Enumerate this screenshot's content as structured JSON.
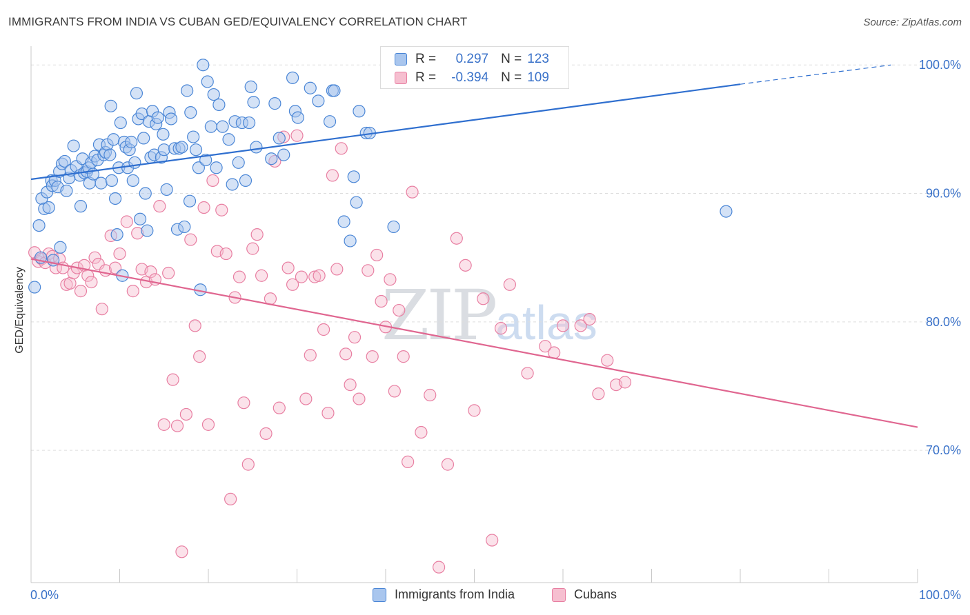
{
  "title": "IMMIGRANTS FROM INDIA VS CUBAN GED/EQUIVALENCY CORRELATION CHART",
  "source": "Source: ZipAtlas.com",
  "watermark": {
    "zip": "ZIP",
    "atlas": "atlas"
  },
  "colors": {
    "blue_fill": "#a9c6ee",
    "blue_stroke": "#4a86d6",
    "blue_line": "#2f6fcf",
    "pink_fill": "#f6bfd0",
    "pink_stroke": "#e87fa2",
    "pink_line": "#e06690",
    "value_text": "#3a72c9",
    "grid": "#dddddd"
  },
  "legend": {
    "rows": [
      {
        "r_label": "R =",
        "r_value": "0.297",
        "n_label": "N =",
        "n_value": "123",
        "series": "blue"
      },
      {
        "r_label": "R =",
        "r_value": "-0.394",
        "n_label": "N =",
        "n_value": "109",
        "series": "pink"
      }
    ]
  },
  "bottom_legend": [
    "Immigrants from India",
    "Cubans"
  ],
  "chart_data": {
    "type": "scatter",
    "xlabel": "",
    "ylabel": "GED/Equivalency",
    "x_tick_labels": [
      "0.0%",
      "100.0%"
    ],
    "y_tick_labels": [
      "100.0%",
      "90.0%",
      "80.0%",
      "70.0%"
    ],
    "xlim": [
      0,
      100
    ],
    "ylim": [
      59.7,
      101.3
    ],
    "grid": true,
    "legend_position": "top-center",
    "series": [
      {
        "name": "Immigrants from India",
        "color": "#4a86d6",
        "trend": {
          "x": [
            0,
            80
          ],
          "y": [
            91.1,
            98.5
          ],
          "dashed_to_x": 97,
          "dashed_to_y": 100.0
        },
        "points": [
          [
            0.4,
            82.7
          ],
          [
            0.9,
            87.5
          ],
          [
            1.1,
            85.0
          ],
          [
            1.2,
            89.6
          ],
          [
            1.5,
            88.8
          ],
          [
            1.8,
            90.1
          ],
          [
            2.0,
            88.9
          ],
          [
            2.3,
            91.0
          ],
          [
            2.4,
            90.6
          ],
          [
            2.7,
            91.0
          ],
          [
            3.0,
            90.5
          ],
          [
            3.2,
            91.7
          ],
          [
            3.5,
            92.3
          ],
          [
            3.8,
            92.5
          ],
          [
            4.0,
            90.2
          ],
          [
            4.3,
            91.2
          ],
          [
            4.5,
            91.8
          ],
          [
            4.8,
            93.7
          ],
          [
            5.1,
            92.1
          ],
          [
            5.5,
            91.4
          ],
          [
            5.8,
            92.7
          ],
          [
            6.0,
            91.6
          ],
          [
            6.3,
            91.7
          ],
          [
            6.5,
            92.0
          ],
          [
            6.6,
            90.8
          ],
          [
            6.8,
            92.4
          ],
          [
            7.0,
            91.5
          ],
          [
            7.2,
            92.9
          ],
          [
            7.5,
            92.6
          ],
          [
            7.7,
            93.8
          ],
          [
            7.9,
            90.8
          ],
          [
            8.2,
            93.0
          ],
          [
            8.4,
            93.2
          ],
          [
            8.6,
            93.8
          ],
          [
            8.9,
            93.0
          ],
          [
            9.1,
            91.0
          ],
          [
            9.3,
            94.2
          ],
          [
            9.5,
            89.6
          ],
          [
            9.7,
            86.8
          ],
          [
            9.9,
            92.0
          ],
          [
            10.1,
            95.5
          ],
          [
            10.3,
            83.6
          ],
          [
            10.5,
            94.0
          ],
          [
            10.7,
            93.6
          ],
          [
            10.9,
            92.0
          ],
          [
            11.1,
            93.4
          ],
          [
            11.3,
            94.0
          ],
          [
            11.5,
            91.0
          ],
          [
            11.7,
            92.4
          ],
          [
            11.9,
            97.8
          ],
          [
            12.1,
            95.8
          ],
          [
            12.3,
            88.0
          ],
          [
            12.5,
            96.2
          ],
          [
            12.7,
            94.3
          ],
          [
            12.9,
            90.0
          ],
          [
            13.1,
            87.1
          ],
          [
            13.3,
            95.6
          ],
          [
            13.5,
            92.8
          ],
          [
            13.7,
            96.4
          ],
          [
            13.9,
            93.0
          ],
          [
            14.1,
            95.4
          ],
          [
            14.3,
            95.9
          ],
          [
            14.7,
            92.8
          ],
          [
            15.0,
            93.4
          ],
          [
            15.3,
            90.3
          ],
          [
            15.6,
            96.3
          ],
          [
            15.8,
            95.8
          ],
          [
            16.2,
            93.5
          ],
          [
            16.5,
            87.2
          ],
          [
            16.7,
            93.5
          ],
          [
            17.0,
            93.6
          ],
          [
            17.3,
            87.4
          ],
          [
            17.6,
            98.0
          ],
          [
            17.9,
            89.4
          ],
          [
            18.0,
            96.3
          ],
          [
            18.3,
            94.4
          ],
          [
            18.6,
            93.4
          ],
          [
            18.9,
            92.0
          ],
          [
            19.1,
            82.5
          ],
          [
            19.4,
            100.0
          ],
          [
            19.7,
            92.6
          ],
          [
            19.9,
            98.7
          ],
          [
            20.3,
            95.2
          ],
          [
            20.6,
            97.7
          ],
          [
            20.9,
            92.0
          ],
          [
            21.2,
            96.9
          ],
          [
            21.6,
            95.2
          ],
          [
            22.3,
            94.2
          ],
          [
            22.7,
            90.7
          ],
          [
            23.0,
            95.6
          ],
          [
            23.4,
            92.4
          ],
          [
            23.8,
            95.5
          ],
          [
            24.2,
            91.0
          ],
          [
            24.6,
            95.5
          ],
          [
            24.8,
            98.3
          ],
          [
            25.1,
            97.1
          ],
          [
            25.4,
            93.6
          ],
          [
            27.1,
            92.7
          ],
          [
            27.5,
            97.0
          ],
          [
            28.0,
            94.3
          ],
          [
            28.5,
            93.0
          ],
          [
            29.5,
            99.0
          ],
          [
            29.8,
            96.4
          ],
          [
            30.1,
            95.9
          ],
          [
            31.5,
            98.2
          ],
          [
            32.4,
            97.2
          ],
          [
            33.7,
            95.6
          ],
          [
            34.0,
            98.0
          ],
          [
            34.2,
            98.0
          ],
          [
            35.3,
            87.8
          ],
          [
            36.0,
            86.3
          ],
          [
            36.4,
            91.3
          ],
          [
            36.7,
            89.3
          ],
          [
            37.0,
            96.4
          ],
          [
            37.8,
            94.7
          ],
          [
            38.2,
            94.7
          ],
          [
            40.9,
            87.4
          ],
          [
            78.4,
            88.6
          ],
          [
            3.3,
            85.8
          ],
          [
            2.5,
            84.8
          ],
          [
            5.6,
            89.0
          ],
          [
            9.0,
            96.8
          ],
          [
            14.9,
            94.6
          ]
        ]
      },
      {
        "name": "Cubans",
        "color": "#e87fa2",
        "trend": {
          "x": [
            0,
            100
          ],
          "y": [
            84.9,
            71.8
          ]
        },
        "points": [
          [
            0.4,
            85.4
          ],
          [
            0.8,
            84.7
          ],
          [
            1.2,
            84.9
          ],
          [
            1.6,
            84.6
          ],
          [
            2.0,
            85.3
          ],
          [
            2.4,
            85.1
          ],
          [
            2.8,
            84.2
          ],
          [
            3.2,
            84.9
          ],
          [
            3.6,
            84.2
          ],
          [
            4.0,
            82.9
          ],
          [
            4.4,
            83.0
          ],
          [
            4.8,
            83.8
          ],
          [
            5.2,
            84.2
          ],
          [
            5.6,
            82.4
          ],
          [
            6.0,
            84.4
          ],
          [
            6.4,
            83.6
          ],
          [
            6.8,
            83.1
          ],
          [
            7.2,
            85.0
          ],
          [
            7.6,
            84.5
          ],
          [
            8.0,
            81.0
          ],
          [
            8.4,
            84.0
          ],
          [
            9.0,
            86.7
          ],
          [
            9.5,
            84.2
          ],
          [
            10.0,
            85.3
          ],
          [
            10.8,
            87.8
          ],
          [
            11.5,
            82.4
          ],
          [
            12.0,
            86.9
          ],
          [
            12.5,
            84.1
          ],
          [
            13.0,
            83.1
          ],
          [
            13.5,
            83.9
          ],
          [
            14.0,
            83.3
          ],
          [
            14.5,
            89.0
          ],
          [
            15.0,
            72.0
          ],
          [
            15.5,
            83.8
          ],
          [
            16.0,
            75.5
          ],
          [
            16.5,
            71.9
          ],
          [
            17.0,
            62.1
          ],
          [
            17.5,
            72.8
          ],
          [
            18.0,
            86.4
          ],
          [
            18.5,
            79.7
          ],
          [
            19.0,
            77.3
          ],
          [
            19.5,
            88.9
          ],
          [
            20.0,
            72.0
          ],
          [
            20.5,
            91.0
          ],
          [
            21.0,
            85.5
          ],
          [
            21.5,
            88.7
          ],
          [
            22.0,
            85.3
          ],
          [
            22.5,
            66.2
          ],
          [
            23.0,
            81.9
          ],
          [
            23.5,
            83.5
          ],
          [
            24.0,
            73.7
          ],
          [
            24.5,
            68.9
          ],
          [
            25.0,
            85.7
          ],
          [
            25.5,
            86.8
          ],
          [
            26.0,
            83.6
          ],
          [
            26.5,
            71.3
          ],
          [
            27.0,
            81.8
          ],
          [
            27.5,
            92.5
          ],
          [
            28.0,
            73.3
          ],
          [
            28.5,
            94.4
          ],
          [
            29.0,
            84.2
          ],
          [
            29.5,
            82.9
          ],
          [
            30.0,
            94.5
          ],
          [
            30.5,
            83.5
          ],
          [
            31.0,
            74.0
          ],
          [
            31.5,
            77.4
          ],
          [
            32.0,
            83.5
          ],
          [
            32.5,
            83.6
          ],
          [
            33.0,
            79.4
          ],
          [
            33.5,
            72.9
          ],
          [
            34.0,
            91.4
          ],
          [
            34.5,
            84.1
          ],
          [
            35.0,
            93.5
          ],
          [
            35.5,
            77.5
          ],
          [
            36.0,
            75.1
          ],
          [
            36.5,
            78.8
          ],
          [
            37.0,
            74.0
          ],
          [
            38.0,
            84.0
          ],
          [
            38.5,
            77.3
          ],
          [
            39.0,
            85.2
          ],
          [
            39.5,
            81.6
          ],
          [
            40.0,
            79.6
          ],
          [
            40.5,
            83.3
          ],
          [
            41.0,
            74.6
          ],
          [
            41.5,
            80.9
          ],
          [
            42.0,
            77.3
          ],
          [
            42.5,
            69.1
          ],
          [
            43.0,
            90.1
          ],
          [
            44.0,
            71.4
          ],
          [
            45.0,
            74.3
          ],
          [
            46.0,
            60.9
          ],
          [
            47.0,
            68.9
          ],
          [
            48.0,
            86.5
          ],
          [
            49.0,
            84.4
          ],
          [
            50.0,
            73.1
          ],
          [
            51.0,
            81.8
          ],
          [
            52.0,
            63.0
          ],
          [
            53.0,
            79.5
          ],
          [
            54.0,
            82.9
          ],
          [
            56.0,
            76.0
          ],
          [
            58.0,
            78.1
          ],
          [
            59.0,
            77.6
          ],
          [
            60.0,
            79.7
          ],
          [
            62.0,
            79.7
          ],
          [
            63.0,
            80.2
          ],
          [
            64.0,
            74.4
          ],
          [
            65.0,
            77.0
          ],
          [
            66.0,
            75.1
          ],
          [
            67.0,
            75.3
          ]
        ]
      }
    ]
  }
}
